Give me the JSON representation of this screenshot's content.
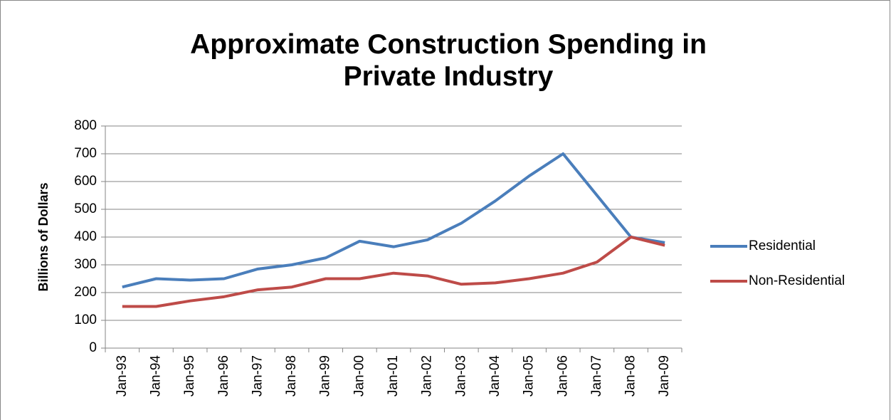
{
  "chart_data": {
    "type": "line",
    "title": "Approximate Construction Spending in Private Industry",
    "y_label": "Billions of Dollars",
    "categories": [
      "Jan-93",
      "Jan-94",
      "Jan-95",
      "Jan-96",
      "Jan-97",
      "Jan-98",
      "Jan-99",
      "Jan-00",
      "Jan-01",
      "Jan-02",
      "Jan-03",
      "Jan-04",
      "Jan-05",
      "Jan-06",
      "Jan-07",
      "Jan-08",
      "Jan-09"
    ],
    "series": [
      {
        "name": "Residential",
        "color": "#4a7ebb",
        "values": [
          220,
          250,
          245,
          250,
          285,
          300,
          325,
          385,
          365,
          390,
          450,
          530,
          620,
          700,
          550,
          400,
          380
        ]
      },
      {
        "name": "Non-Residential",
        "color": "#be4b48",
        "values": [
          150,
          150,
          170,
          185,
          210,
          220,
          250,
          250,
          270,
          260,
          230,
          235,
          250,
          270,
          310,
          400,
          370
        ]
      }
    ],
    "ylim": [
      0,
      800
    ],
    "yticks": [
      0,
      100,
      200,
      300,
      400,
      500,
      600,
      700,
      800
    ],
    "grid": true,
    "legend": "right"
  }
}
